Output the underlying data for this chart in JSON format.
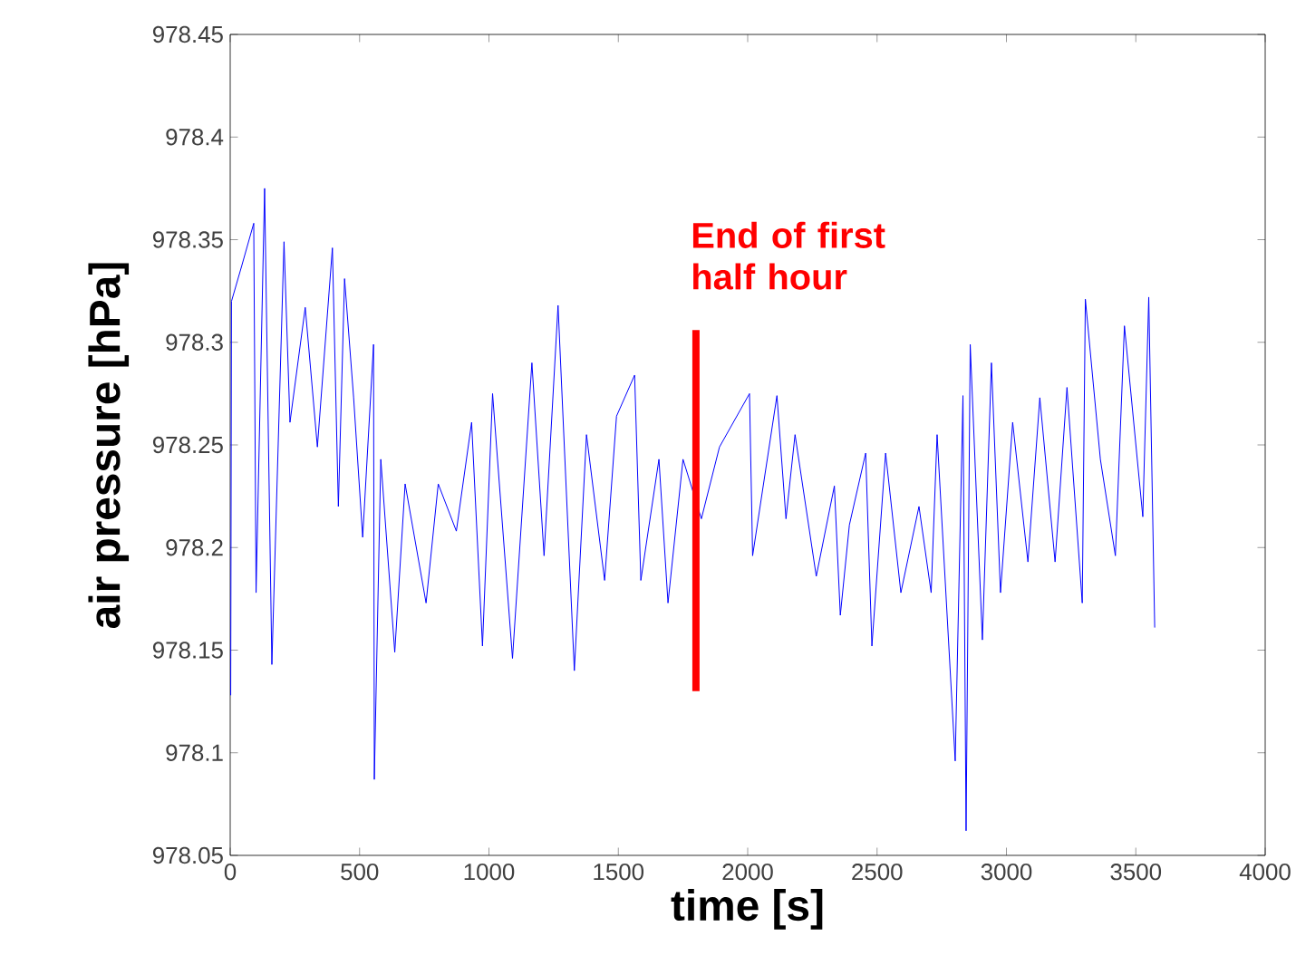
{
  "chart_data": {
    "type": "line",
    "xlabel": "time [s]",
    "ylabel": "air pressure [hPa]",
    "xlim": [
      0,
      4000
    ],
    "xticks": [
      0,
      500,
      1000,
      1500,
      2000,
      2500,
      3000,
      3500,
      4000
    ],
    "ylim": [
      978.05,
      978.45
    ],
    "yticks": [
      978.05,
      978.1,
      978.15,
      978.2,
      978.25,
      978.3,
      978.35,
      978.4,
      978.45
    ],
    "series": [
      {
        "color": "#0000ff",
        "x": [
          2,
          5,
          44,
          91,
          100,
          133,
          161,
          208,
          231,
          290,
          337,
          395,
          418,
          442,
          477,
          512,
          554,
          557,
          582,
          636,
          676,
          757,
          804,
          874,
          933,
          975,
          1014,
          1091,
          1166,
          1213,
          1267,
          1330,
          1377,
          1447,
          1493,
          1563,
          1587,
          1657,
          1692,
          1750,
          1821,
          1891,
          2007,
          2019,
          2113,
          2148,
          2183,
          2265,
          2335,
          2358,
          2393,
          2456,
          2480,
          2533,
          2592,
          2662,
          2709,
          2732,
          2802,
          2832,
          2844,
          2860,
          2907,
          2942,
          2977,
          3024,
          3083,
          3129,
          3188,
          3234,
          3293,
          3305,
          3363,
          3421,
          3456,
          3527,
          3550,
          3573
        ],
        "values": [
          978.128,
          978.32,
          978.337,
          978.358,
          978.178,
          978.375,
          978.143,
          978.349,
          978.261,
          978.317,
          978.249,
          978.346,
          978.22,
          978.331,
          978.273,
          978.205,
          978.299,
          978.087,
          978.243,
          978.149,
          978.231,
          978.173,
          978.231,
          978.208,
          978.261,
          978.152,
          978.275,
          978.146,
          978.29,
          978.196,
          978.318,
          978.14,
          978.255,
          978.184,
          978.264,
          978.284,
          978.184,
          978.243,
          978.173,
          978.243,
          978.214,
          978.249,
          978.275,
          978.196,
          978.274,
          978.214,
          978.255,
          978.186,
          978.23,
          978.167,
          978.211,
          978.246,
          978.152,
          978.246,
          978.178,
          978.22,
          978.178,
          978.255,
          978.096,
          978.274,
          978.062,
          978.299,
          978.155,
          978.29,
          978.178,
          978.261,
          978.193,
          978.273,
          978.193,
          978.278,
          978.173,
          978.321,
          978.243,
          978.196,
          978.308,
          978.215,
          978.322,
          978.161
        ]
      },
      {
        "color": "#ff0000",
        "x": [
          1800,
          1800
        ],
        "values": [
          978.13,
          978.306
        ]
      }
    ],
    "annotations": [
      {
        "text": "End of first half hour",
        "x": 1800,
        "y": 978.306
      }
    ]
  }
}
